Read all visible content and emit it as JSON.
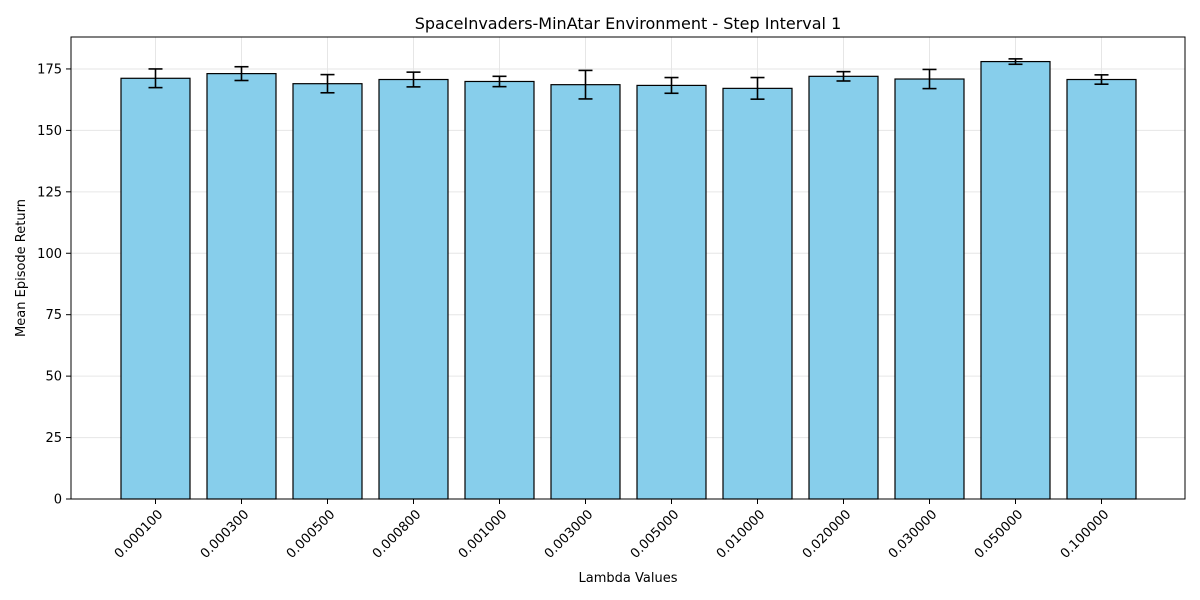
{
  "chart_data": {
    "type": "bar",
    "title": "SpaceInvaders-MinAtar Environment - Step Interval 1",
    "xlabel": "Lambda Values",
    "ylabel": "Mean Episode Return",
    "categories": [
      "0.000100",
      "0.000300",
      "0.000500",
      "0.000800",
      "0.001000",
      "0.003000",
      "0.005000",
      "0.010000",
      "0.020000",
      "0.030000",
      "0.050000",
      "0.100000"
    ],
    "values": [
      171.2,
      173.1,
      169.0,
      170.7,
      169.9,
      168.6,
      168.3,
      167.1,
      172.0,
      170.9,
      178.0,
      170.7
    ],
    "errors": [
      3.8,
      2.8,
      3.7,
      3.0,
      2.1,
      5.8,
      3.2,
      4.4,
      1.9,
      3.9,
      1.1,
      1.9
    ],
    "ylim": [
      0,
      188
    ],
    "yticks": [
      0,
      25,
      50,
      75,
      100,
      125,
      150,
      175
    ],
    "grid": true,
    "colors": {
      "bar_fill": "#87ceeb",
      "bar_edge": "#000000",
      "error_bar": "#000000",
      "grid": "#e6e6e6"
    }
  }
}
